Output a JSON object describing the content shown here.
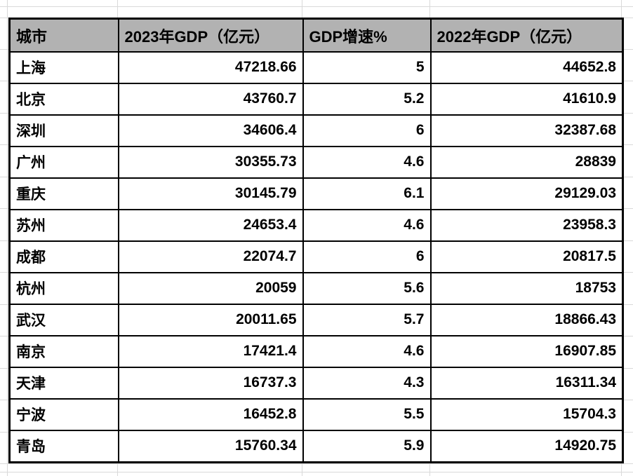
{
  "table": {
    "headers": [
      "城市",
      "2023年GDP（亿元）",
      "GDP增速%",
      "2022年GDP（亿元）"
    ],
    "rows": [
      [
        "上海",
        "47218.66",
        "5",
        "44652.8"
      ],
      [
        "北京",
        "43760.7",
        "5.2",
        "41610.9"
      ],
      [
        "深圳",
        "34606.4",
        "6",
        "32387.68"
      ],
      [
        "广州",
        "30355.73",
        "4.6",
        "28839"
      ],
      [
        "重庆",
        "30145.79",
        "6.1",
        "29129.03"
      ],
      [
        "苏州",
        "24653.4",
        "4.6",
        "23958.3"
      ],
      [
        "成都",
        "22074.7",
        "6",
        "20817.5"
      ],
      [
        "杭州",
        "20059",
        "5.6",
        "18753"
      ],
      [
        "武汉",
        "20011.65",
        "5.7",
        "18866.43"
      ],
      [
        "南京",
        "17421.4",
        "4.6",
        "16907.85"
      ],
      [
        "天津",
        "16737.3",
        "4.3",
        "16311.34"
      ],
      [
        "宁波",
        "16452.8",
        "5.5",
        "15704.3"
      ],
      [
        "青岛",
        "15760.34",
        "5.9",
        "14920.75"
      ]
    ]
  },
  "colors": {
    "header_bg": "#b2b2b2",
    "table_border": "#000000",
    "gridline": "#d9d9d9"
  }
}
